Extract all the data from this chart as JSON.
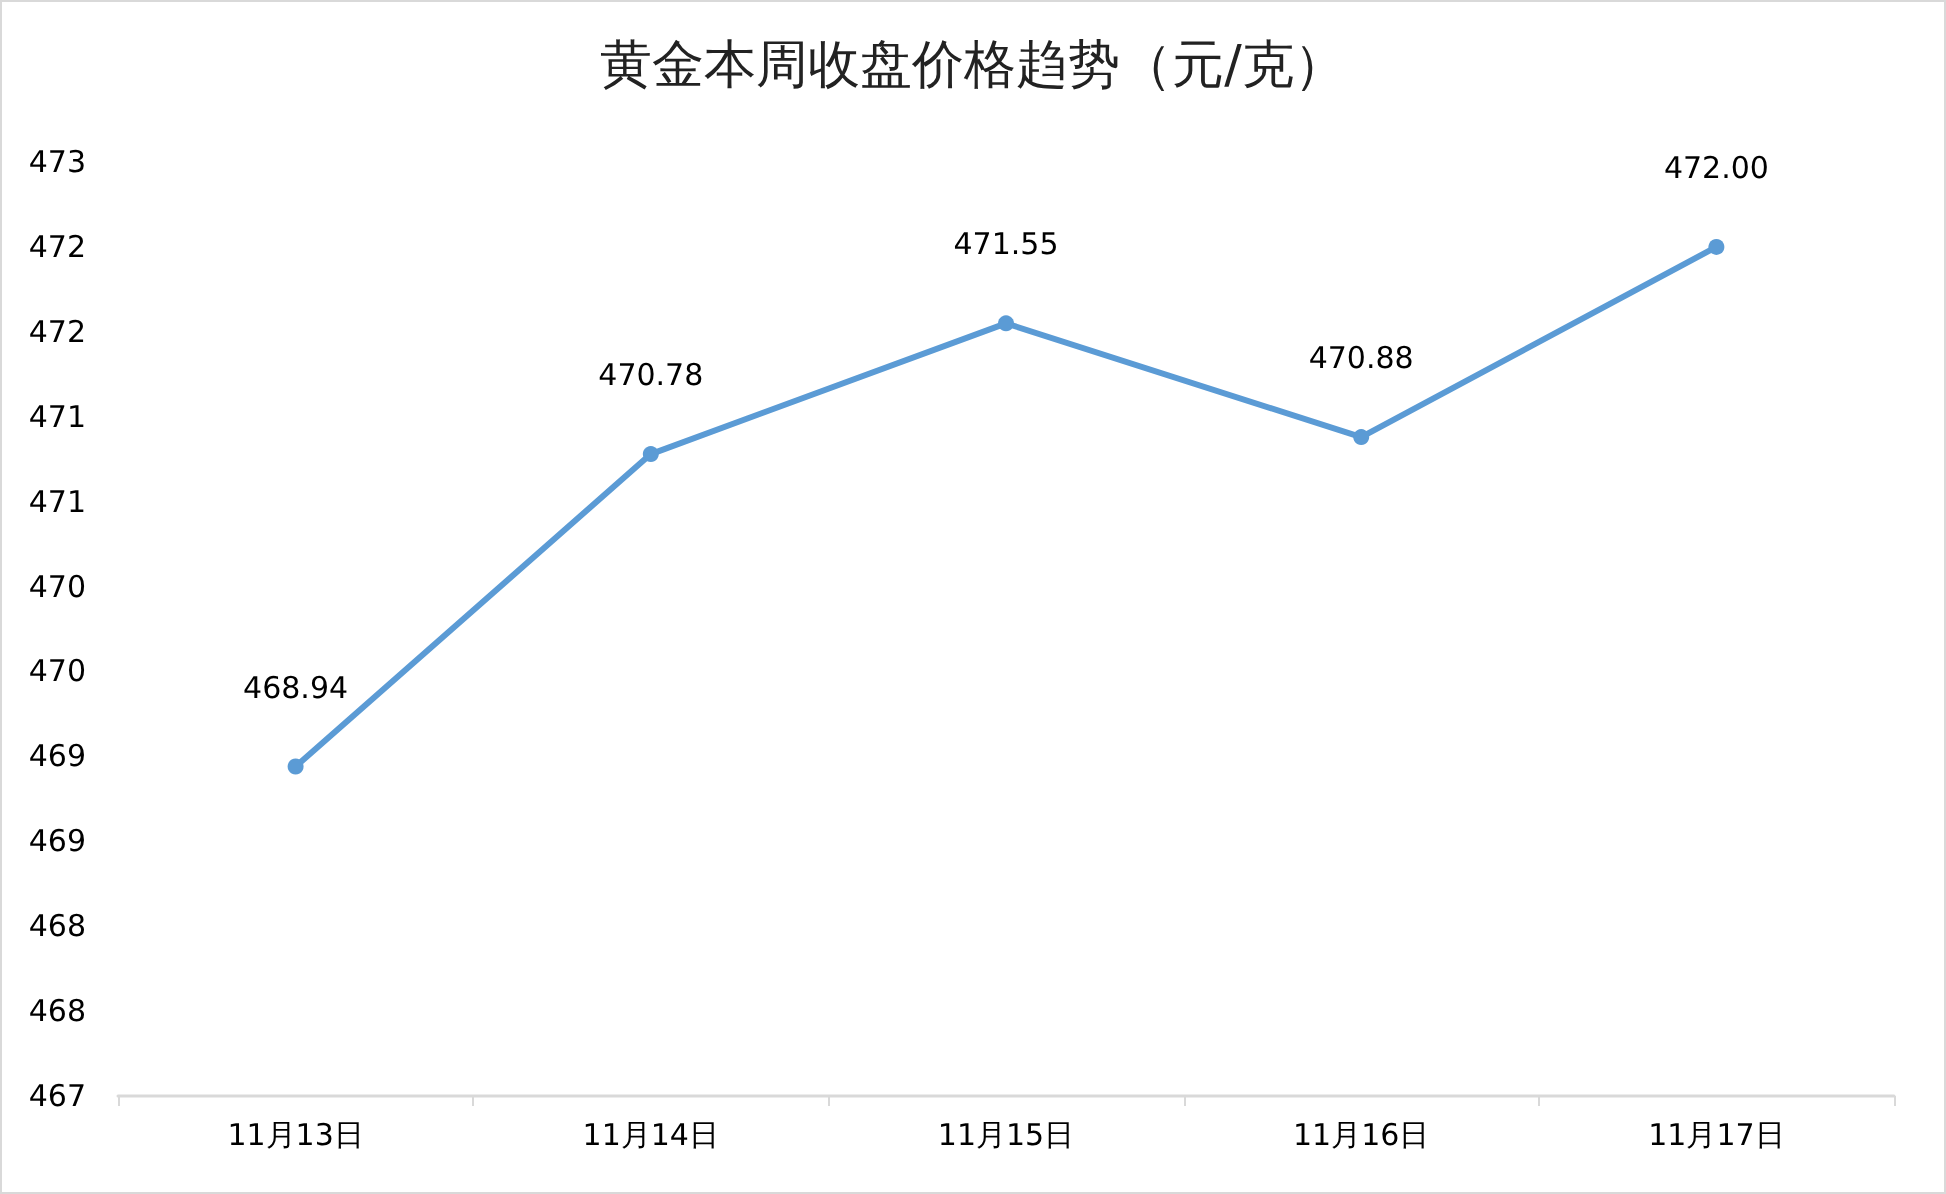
{
  "chart_data": {
    "type": "line",
    "title": "黄金本周收盘价格趋势（元/克）",
    "categories": [
      "11月13日",
      "11月14日",
      "11月15日",
      "11月16日",
      "11月17日"
    ],
    "series": [
      {
        "color": "#5b9bd5",
        "values": [
          468.94,
          470.78,
          471.55,
          470.88,
          472.0
        ]
      }
    ],
    "value_labels": [
      "468.94",
      "470.78",
      "471.55",
      "470.88",
      "472.00"
    ],
    "ylim": [
      467,
      472.5
    ],
    "yticks": [
      467,
      {
        "value": 467.5,
        "label": "468"
      },
      468,
      {
        "value": 468.5,
        "label": "469"
      },
      469,
      {
        "value": 469.5,
        "label": "470"
      },
      470,
      {
        "value": 470.5,
        "label": "471"
      },
      471,
      {
        "value": 471.5,
        "label": "472"
      },
      472,
      {
        "value": 472.5,
        "label": "473"
      }
    ],
    "grid": false,
    "marker": "circle",
    "line_style": "solid"
  }
}
